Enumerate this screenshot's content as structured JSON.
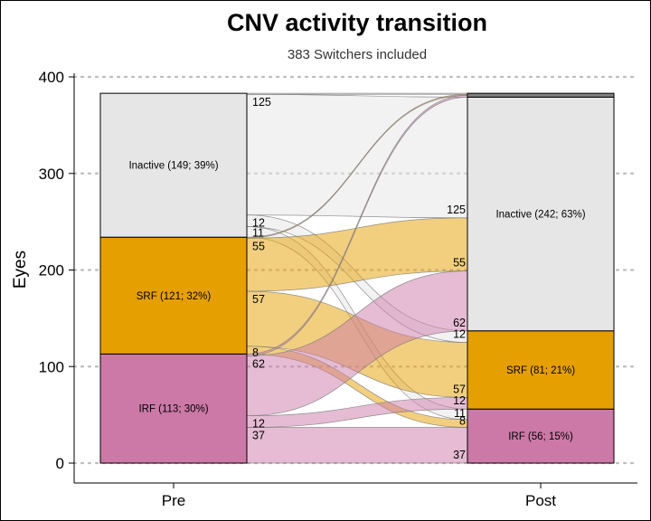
{
  "chart_data": {
    "type": "alluvial",
    "title": "CNV activity transition",
    "subtitle": "383 Switchers included",
    "ylabel": "Eyes",
    "xlabel": "",
    "ylim": [
      0,
      400
    ],
    "y_ticks": [
      0,
      100,
      200,
      300,
      400
    ],
    "grid": "horizontal-dotted",
    "categories": [
      "Pre",
      "Post"
    ],
    "colors": {
      "Inactive": "#e6e6e6",
      "SRF": "#e69f00",
      "IRF": "#cc79a7",
      "unlabeled": "#808080"
    },
    "pre_strata": [
      {
        "name": "IRF",
        "label": "IRF (113; 30%)",
        "value": 113
      },
      {
        "name": "SRF",
        "label": "SRF (121; 32%)",
        "value": 121
      },
      {
        "name": "Inactive",
        "label": "Inactive (149; 39%)",
        "value": 149
      }
    ],
    "post_strata": [
      {
        "name": "IRF",
        "label": "IRF (56; 15%)",
        "value": 56
      },
      {
        "name": "SRF",
        "label": "SRF (81; 21%)",
        "value": 81
      },
      {
        "name": "Inactive",
        "label": "Inactive (242; 63%)",
        "value": 242
      },
      {
        "name": "unlabeled",
        "label": "",
        "value": 4
      }
    ],
    "flows": [
      {
        "from": "Inactive",
        "to": "unlabeled",
        "value": 1,
        "label": ""
      },
      {
        "from": "Inactive",
        "to": "Inactive",
        "value": 125,
        "label": "125"
      },
      {
        "from": "Inactive",
        "to": "SRF",
        "value": 12,
        "label": "12"
      },
      {
        "from": "Inactive",
        "to": "IRF",
        "value": 11,
        "label": "11"
      },
      {
        "from": "SRF",
        "to": "Inactive",
        "value": 55,
        "label": "55"
      },
      {
        "from": "SRF",
        "to": "SRF",
        "value": 57,
        "label": "57"
      },
      {
        "from": "SRF",
        "to": "IRF",
        "value": 8,
        "label": "8"
      },
      {
        "from": "SRF",
        "to": "unlabeled",
        "value": 1,
        "label": ""
      },
      {
        "from": "IRF",
        "to": "Inactive",
        "value": 62,
        "label": "62"
      },
      {
        "from": "IRF",
        "to": "SRF",
        "value": 12,
        "label": "12"
      },
      {
        "from": "IRF",
        "to": "IRF",
        "value": 37,
        "label": "37"
      },
      {
        "from": "IRF",
        "to": "unlabeled",
        "value": 2,
        "label": ""
      }
    ]
  }
}
